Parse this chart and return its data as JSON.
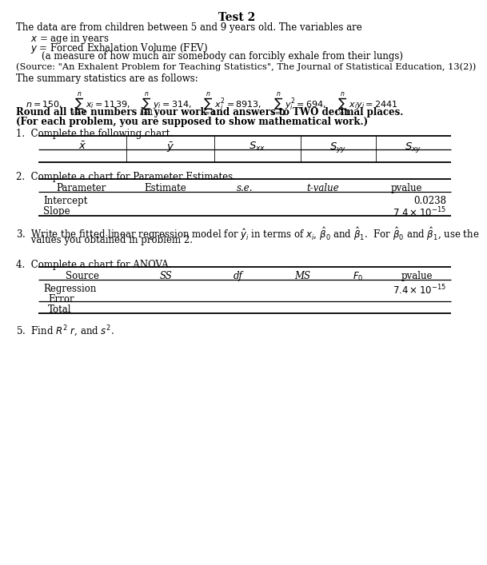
{
  "title": "Test 2",
  "intro": "The data are from children between 5 and 9 years old. The variables are",
  "var_x": "$x$ = age in years",
  "var_y": "$y$ = Forced Exhalation Volume (FEV)",
  "var_y2": "(a measure of how much air somebody can forcibly exhale from their lungs)",
  "source": "(Source: \"An Exhalent Problem for Teaching Statistics\", The Journal of Statistical Education, 13(2))",
  "summary_intro": "The summary statistics are as follows:",
  "stats_line": "$n = 150, \\quad \\displaystyle\\sum_{i=1}^{n} x_i = 1139, \\quad \\sum_{i=1}^{n} y_i = 314, \\quad \\sum_{i=1}^{n} x_i^2 = 8913, \\quad \\sum_{i=1}^{n} y_i^2 = 694, \\quad \\sum_{i=1}^{n} x_i y_i = 2441$",
  "bold_note1": "Round all the numbers in your work and answers to TWO decimal places.",
  "bold_note2": "(For each problem, you are supposed to show mathematical work.)",
  "q1_label": "1.  Complete the following chart.",
  "table1_headers": [
    "$\\bar{x}$",
    "$\\bar{y}$",
    "$S_{xx}$",
    "$S_{yy}$",
    "$S_{xy}$"
  ],
  "q2_label": "2.  Complete a chart for Parameter Estimates.",
  "table2_headers": [
    "Parameter",
    "Estimate",
    "s.e.",
    "t-value",
    "pvalue"
  ],
  "q3_label_a": "3.  Write the fitted linear regression model for $\\hat{y}_i$ in terms of $x_i$, $\\hat{\\beta}_0$ and $\\hat{\\beta}_1$.  For $\\hat{\\beta}_0$ and $\\hat{\\beta}_1$, use the",
  "q3_label_b": "     values you obtained in problem 2.",
  "q4_label": "4.  Complete a chart for ANOVA.",
  "table3_headers": [
    "Source",
    "SS",
    "df",
    "MS",
    "$F_0$",
    "pvalue"
  ],
  "q5_label": "5.  Find $R^2$ $r$, and $s^2$.",
  "intercept_pvalue": "0.0238",
  "slope_pvalue": "$7.4 \\times 10^{-15}$",
  "regression_pvalue": "$7.4 \\times 10^{-15}$"
}
